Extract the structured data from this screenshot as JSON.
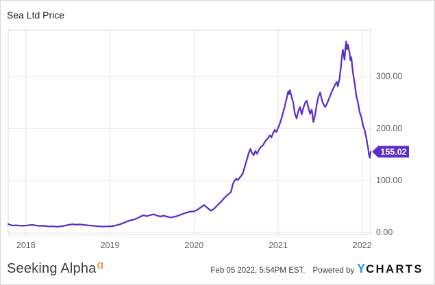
{
  "header": {
    "title": "Sea Ltd Price"
  },
  "footer": {
    "brand": {
      "text": "Seeking Alpha",
      "alpha_symbol": "α",
      "alpha_color": "#f47a1f"
    },
    "timestamp": "Feb 05 2022, 5:54PM EST.",
    "powered_by": "Powered by",
    "ycharts": {
      "y": "Y",
      "charts": "CHARTS",
      "y_color": "#1b9ce8"
    }
  },
  "chart_data": {
    "type": "line",
    "title": "Sea Ltd Price",
    "series_name": "Sea Ltd Price",
    "line_color": "#5b2fc9",
    "grid_color": "#e4e4e4",
    "plot_border_color": "#d9d9d9",
    "tick_label_color": "#5f5f5f",
    "badge_color": "#5b2fc9",
    "badge_text_color": "#ffffff",
    "grid": true,
    "legend": "none",
    "y_axis_side": "right",
    "x_ticks": [
      "2018",
      "2019",
      "2020",
      "2021",
      "2022"
    ],
    "x_tick_values": [
      2018,
      2019,
      2020,
      2021,
      2022
    ],
    "y_ticks": [
      "0.00",
      "100.00",
      "200.00",
      "300.00"
    ],
    "y_tick_values": [
      0,
      100,
      200,
      300
    ],
    "x_domain": [
      2017.79,
      2022.1
    ],
    "y_domain": [
      -4,
      389
    ],
    "last_price": 155.02,
    "last_price_label": "155.02",
    "points": [
      [
        2017.79,
        16.0
      ],
      [
        2017.82,
        14.2
      ],
      [
        2017.85,
        12.9
      ],
      [
        2017.88,
        13.6
      ],
      [
        2017.92,
        13.0
      ],
      [
        2017.96,
        12.7
      ],
      [
        2018.0,
        13.1
      ],
      [
        2018.04,
        13.9
      ],
      [
        2018.08,
        14.3
      ],
      [
        2018.12,
        13.2
      ],
      [
        2018.16,
        12.3
      ],
      [
        2018.2,
        12.7
      ],
      [
        2018.24,
        11.9
      ],
      [
        2018.28,
        11.2
      ],
      [
        2018.32,
        11.6
      ],
      [
        2018.36,
        10.9
      ],
      [
        2018.4,
        11.3
      ],
      [
        2018.44,
        12.1
      ],
      [
        2018.48,
        13.4
      ],
      [
        2018.52,
        14.9
      ],
      [
        2018.56,
        15.6
      ],
      [
        2018.6,
        14.7
      ],
      [
        2018.64,
        15.3
      ],
      [
        2018.68,
        14.5
      ],
      [
        2018.72,
        13.7
      ],
      [
        2018.76,
        13.1
      ],
      [
        2018.8,
        12.5
      ],
      [
        2018.84,
        11.9
      ],
      [
        2018.88,
        11.4
      ],
      [
        2018.92,
        11.1
      ],
      [
        2018.96,
        11.6
      ],
      [
        2019.0,
        11.4
      ],
      [
        2019.04,
        12.2
      ],
      [
        2019.08,
        13.8
      ],
      [
        2019.12,
        15.4
      ],
      [
        2019.16,
        18.0
      ],
      [
        2019.2,
        21.0
      ],
      [
        2019.24,
        22.8
      ],
      [
        2019.28,
        24.2
      ],
      [
        2019.32,
        26.8
      ],
      [
        2019.36,
        30.2
      ],
      [
        2019.4,
        32.8
      ],
      [
        2019.44,
        31.2
      ],
      [
        2019.48,
        33.2
      ],
      [
        2019.52,
        34.6
      ],
      [
        2019.56,
        32.2
      ],
      [
        2019.6,
        30.6
      ],
      [
        2019.64,
        32.1
      ],
      [
        2019.68,
        30.1
      ],
      [
        2019.72,
        28.6
      ],
      [
        2019.76,
        29.8
      ],
      [
        2019.8,
        31.4
      ],
      [
        2019.84,
        33.8
      ],
      [
        2019.88,
        36.2
      ],
      [
        2019.92,
        38.2
      ],
      [
        2019.96,
        40.1
      ],
      [
        2020.0,
        40.3
      ],
      [
        2020.04,
        43.5
      ],
      [
        2020.08,
        48.0
      ],
      [
        2020.12,
        52.5
      ],
      [
        2020.16,
        47.0
      ],
      [
        2020.2,
        41.5
      ],
      [
        2020.24,
        45.5
      ],
      [
        2020.28,
        52.5
      ],
      [
        2020.32,
        58.5
      ],
      [
        2020.36,
        66.0
      ],
      [
        2020.4,
        72.0
      ],
      [
        2020.44,
        78.0
      ],
      [
        2020.46,
        92.0
      ],
      [
        2020.48,
        99.0
      ],
      [
        2020.5,
        103.0
      ],
      [
        2020.52,
        100.5
      ],
      [
        2020.54,
        104.5
      ],
      [
        2020.56,
        108.5
      ],
      [
        2020.58,
        113.0
      ],
      [
        2020.61,
        130.0
      ],
      [
        2020.63,
        141.0
      ],
      [
        2020.65,
        152.0
      ],
      [
        2020.67,
        160.5
      ],
      [
        2020.69,
        152.5
      ],
      [
        2020.71,
        148.5
      ],
      [
        2020.73,
        156.5
      ],
      [
        2020.75,
        151.0
      ],
      [
        2020.77,
        158.5
      ],
      [
        2020.79,
        163.5
      ],
      [
        2020.82,
        167.5
      ],
      [
        2020.85,
        176.0
      ],
      [
        2020.88,
        181.0
      ],
      [
        2020.9,
        186.5
      ],
      [
        2020.92,
        182.5
      ],
      [
        2020.94,
        190.5
      ],
      [
        2020.96,
        197.0
      ],
      [
        2020.98,
        193.0
      ],
      [
        2021.0,
        201.0
      ],
      [
        2021.02,
        209.0
      ],
      [
        2021.04,
        219.0
      ],
      [
        2021.06,
        231.0
      ],
      [
        2021.08,
        243.0
      ],
      [
        2021.1,
        257.0
      ],
      [
        2021.12,
        271.0
      ],
      [
        2021.13,
        266.0
      ],
      [
        2021.14,
        273.5
      ],
      [
        2021.16,
        261.0
      ],
      [
        2021.18,
        249.0
      ],
      [
        2021.2,
        228.0
      ],
      [
        2021.22,
        219.0
      ],
      [
        2021.24,
        233.0
      ],
      [
        2021.26,
        241.0
      ],
      [
        2021.28,
        227.0
      ],
      [
        2021.3,
        239.0
      ],
      [
        2021.32,
        249.0
      ],
      [
        2021.34,
        253.0
      ],
      [
        2021.36,
        240.0
      ],
      [
        2021.38,
        228.0
      ],
      [
        2021.4,
        236.0
      ],
      [
        2021.42,
        212.0
      ],
      [
        2021.44,
        226.0
      ],
      [
        2021.46,
        246.0
      ],
      [
        2021.48,
        261.0
      ],
      [
        2021.5,
        269.0
      ],
      [
        2021.52,
        255.0
      ],
      [
        2021.54,
        246.0
      ],
      [
        2021.56,
        241.0
      ],
      [
        2021.58,
        247.0
      ],
      [
        2021.6,
        255.0
      ],
      [
        2021.62,
        263.0
      ],
      [
        2021.64,
        271.0
      ],
      [
        2021.66,
        278.0
      ],
      [
        2021.68,
        285.0
      ],
      [
        2021.7,
        289.0
      ],
      [
        2021.71,
        281.0
      ],
      [
        2021.73,
        295.0
      ],
      [
        2021.75,
        322.0
      ],
      [
        2021.76,
        340.0
      ],
      [
        2021.77,
        351.0
      ],
      [
        2021.78,
        341.0
      ],
      [
        2021.79,
        332.0
      ],
      [
        2021.8,
        354.0
      ],
      [
        2021.81,
        367.0
      ],
      [
        2021.82,
        352.0
      ],
      [
        2021.83,
        361.0
      ],
      [
        2021.85,
        345.0
      ],
      [
        2021.86,
        331.0
      ],
      [
        2021.87,
        337.0
      ],
      [
        2021.89,
        307.0
      ],
      [
        2021.91,
        287.0
      ],
      [
        2021.93,
        263.0
      ],
      [
        2021.95,
        249.0
      ],
      [
        2021.97,
        231.0
      ],
      [
        2021.99,
        222.0
      ],
      [
        2022.01,
        205.0
      ],
      [
        2022.03,
        196.0
      ],
      [
        2022.05,
        181.0
      ],
      [
        2022.06,
        170.0
      ],
      [
        2022.07,
        163.0
      ],
      [
        2022.08,
        150.0
      ],
      [
        2022.09,
        143.5
      ],
      [
        2022.1,
        155.02
      ]
    ]
  }
}
